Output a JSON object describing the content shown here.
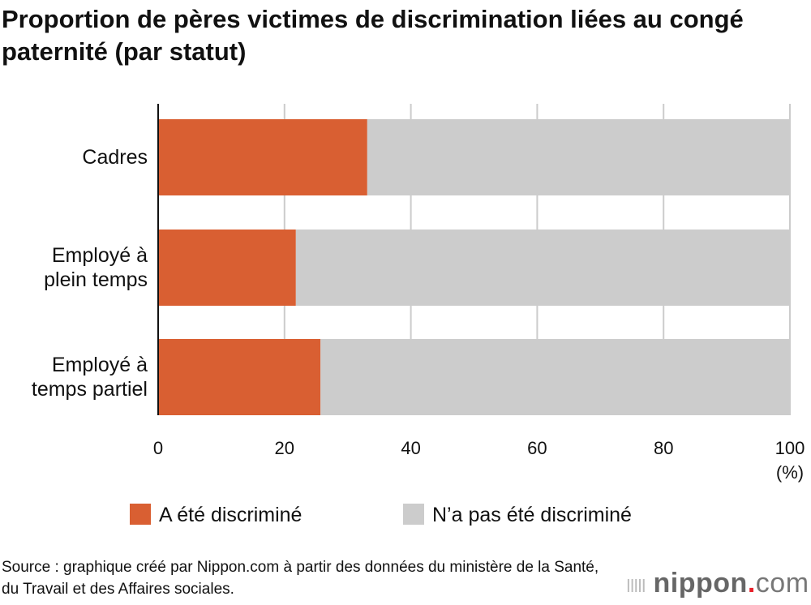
{
  "title": "Proportion de pères victimes de discrimination liées au congé paternité (par statut)",
  "source": "Source : graphique créé par Nippon.com à partir des données du ministère de la Santé, du Travail et des Affaires sociales.",
  "logo": "nippon.com",
  "chart_data": {
    "type": "bar",
    "orientation": "horizontal",
    "stacked": true,
    "categories": [
      [
        "Cadres"
      ],
      [
        "Employé à",
        "plein temps"
      ],
      [
        "Employé à",
        "temps partiel"
      ]
    ],
    "series": [
      {
        "name": "A été discriminé",
        "color": "#d95f32",
        "values": [
          33.1,
          21.8,
          25.7
        ]
      },
      {
        "name": "N’a pas été discriminé",
        "color": "#cccccc",
        "values": [
          66.9,
          78.2,
          74.3
        ]
      }
    ],
    "xlim": [
      0,
      100
    ],
    "xticks": [
      0,
      20,
      40,
      60,
      80,
      100
    ],
    "xunit": "(%)",
    "grid": true,
    "legend": "bottom"
  }
}
